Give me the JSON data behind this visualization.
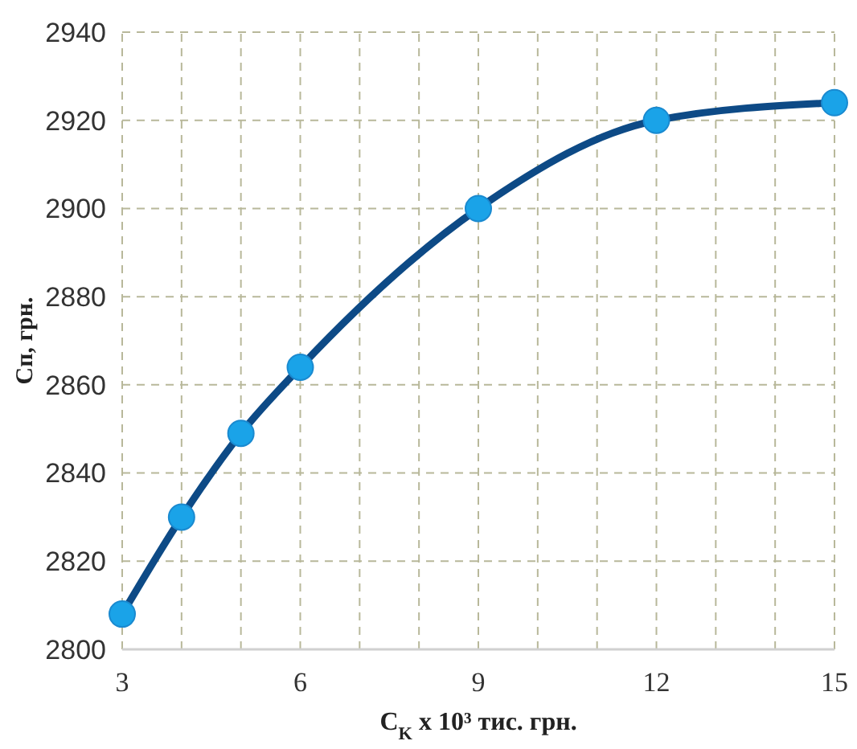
{
  "chart_data": {
    "type": "line",
    "xlabel": "C$_{K}$ x 10³ тис. грн.",
    "ylabel": "Сп, грн.",
    "x": [
      3,
      4,
      5,
      6,
      9,
      12,
      15
    ],
    "series": [
      {
        "color": "#0d4a86",
        "values": [
          2808,
          2830,
          2849,
          2864,
          2900,
          2920,
          2924
        ]
      }
    ],
    "xlim": [
      3,
      15
    ],
    "xticks": [
      3,
      {
        "value": 4,
        "label": null
      },
      {
        "value": 5,
        "label": null
      },
      6,
      {
        "value": 7,
        "label": null
      },
      {
        "value": 8,
        "label": null
      },
      9,
      {
        "value": 10,
        "label": null
      },
      {
        "value": 11,
        "label": null
      },
      12,
      {
        "value": 13,
        "label": null
      },
      {
        "value": 14,
        "label": null
      },
      15
    ],
    "ylim": [
      2800,
      2940
    ],
    "yticks": [
      2800,
      2820,
      2840,
      2860,
      2880,
      2900,
      2920,
      2940
    ],
    "grid": true,
    "marker": "circle",
    "line_style": "solid"
  }
}
